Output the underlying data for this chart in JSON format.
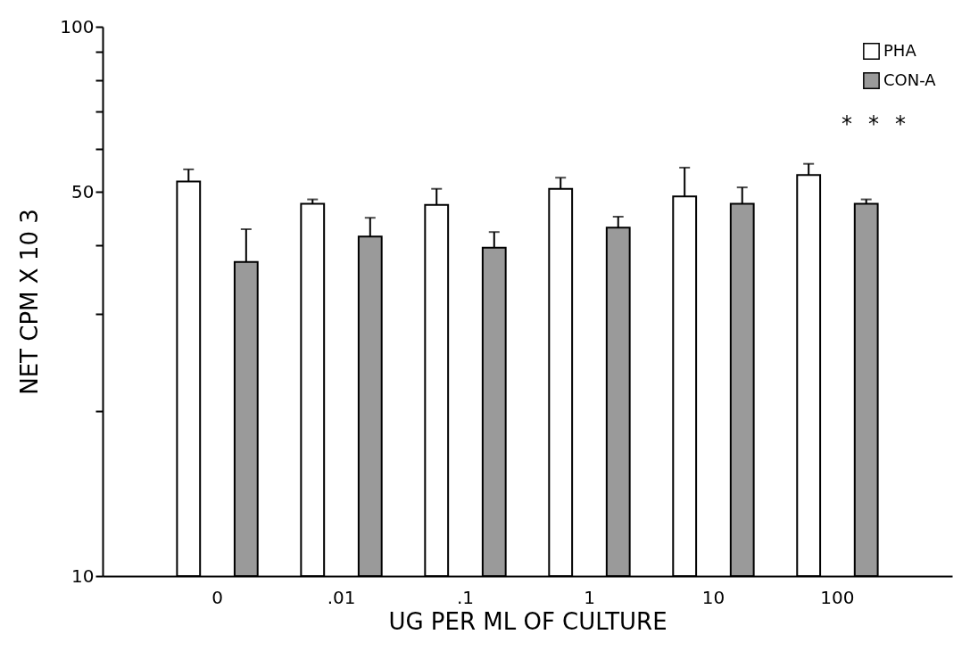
{
  "chart_data": {
    "type": "bar",
    "xlabel": "UG PER ML OF CULTURE",
    "ylabel": "NET CPM X 10 3",
    "categories": [
      "0",
      ".01",
      ".1",
      "1",
      "10",
      "100"
    ],
    "series": [
      {
        "name": "PHA",
        "color": "#ffffff",
        "values": [
          52.3,
          47.6,
          47.4,
          50.7,
          49.1,
          53.7
        ],
        "errors": [
          [
            52.3,
            55.0
          ],
          [
            47.6,
            48.5
          ],
          [
            47.4,
            50.7
          ],
          [
            50.7,
            53.1
          ],
          [
            49.1,
            55.4
          ],
          [
            53.7,
            56.3
          ]
        ]
      },
      {
        "name": "CON-A",
        "color": "#9a9a9a",
        "values": [
          37.3,
          41.5,
          39.6,
          43.1,
          47.6,
          47.6
        ],
        "errors": [
          [
            37.3,
            42.8
          ],
          [
            41.5,
            44.9
          ],
          [
            39.6,
            42.3
          ],
          [
            43.1,
            45.1
          ],
          [
            47.6,
            51.0
          ],
          [
            47.6,
            48.5
          ]
        ]
      }
    ],
    "log": "y",
    "ylim": [
      10,
      100
    ],
    "yticks": [
      10,
      {
        "value": 20,
        "label": null
      },
      {
        "value": 30,
        "label": null
      },
      {
        "value": 40,
        "label": null
      },
      50,
      {
        "value": 60,
        "label": null
      },
      {
        "value": 70,
        "label": null
      },
      {
        "value": 80,
        "label": null
      },
      {
        "value": 90,
        "label": null
      },
      100
    ],
    "annotations": [
      "*",
      "*",
      "*"
    ],
    "legend": "top right",
    "grid": false
  }
}
